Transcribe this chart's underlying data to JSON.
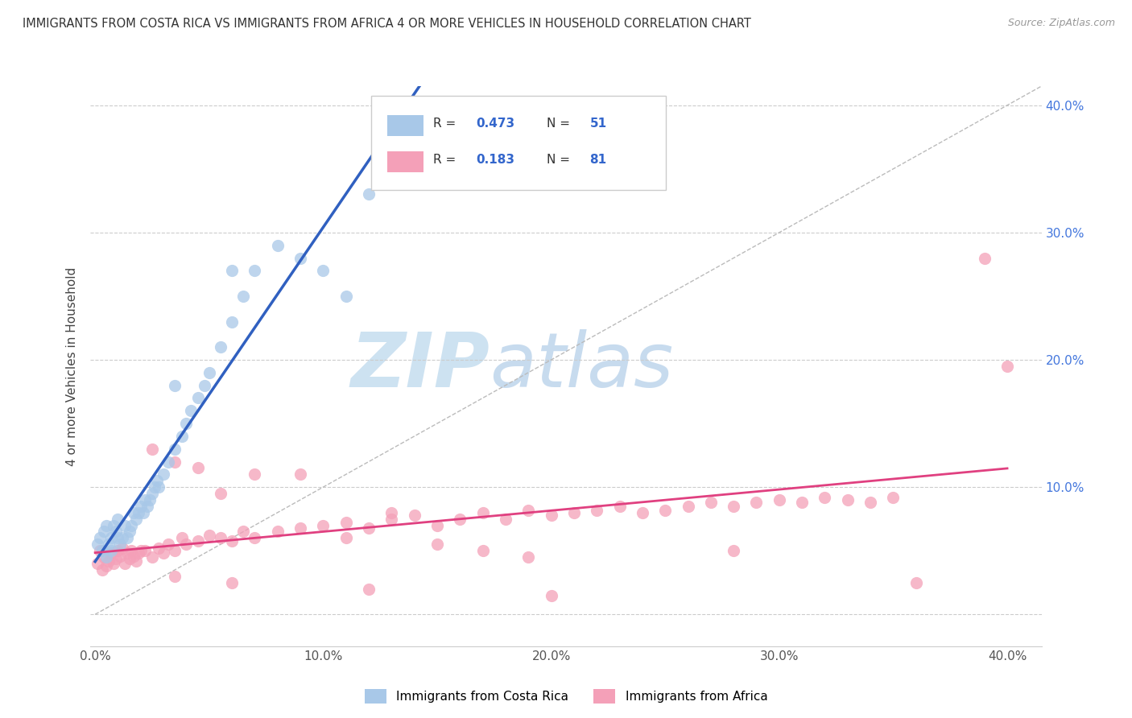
{
  "title": "IMMIGRANTS FROM COSTA RICA VS IMMIGRANTS FROM AFRICA 4 OR MORE VEHICLES IN HOUSEHOLD CORRELATION CHART",
  "source": "Source: ZipAtlas.com",
  "ylabel": "4 or more Vehicles in Household",
  "legend_label1": "Immigrants from Costa Rica",
  "legend_label2": "Immigrants from Africa",
  "r1": 0.473,
  "n1": 51,
  "r2": 0.183,
  "n2": 81,
  "color1": "#a8c8e8",
  "color2": "#f4a0b8",
  "line_color1": "#3060c0",
  "line_color2": "#e04080",
  "xlim": [
    -0.002,
    0.415
  ],
  "ylim": [
    -0.025,
    0.415
  ],
  "xticks": [
    0.0,
    0.1,
    0.2,
    0.3,
    0.4
  ],
  "yticks": [
    0.0,
    0.1,
    0.2,
    0.3,
    0.4
  ],
  "xticklabels": [
    "0.0%",
    "10.0%",
    "20.0%",
    "30.0%",
    "40.0%"
  ],
  "right_yticklabels": [
    "",
    "10.0%",
    "20.0%",
    "30.0%",
    "40.0%"
  ],
  "watermark_zip": "ZIP",
  "watermark_atlas": "atlas",
  "background_color": "#ffffff",
  "costa_rica_x": [
    0.001,
    0.002,
    0.003,
    0.004,
    0.005,
    0.005,
    0.006,
    0.007,
    0.007,
    0.008,
    0.009,
    0.01,
    0.01,
    0.011,
    0.012,
    0.013,
    0.014,
    0.015,
    0.016,
    0.017,
    0.018,
    0.019,
    0.02,
    0.021,
    0.022,
    0.023,
    0.024,
    0.025,
    0.026,
    0.027,
    0.028,
    0.03,
    0.032,
    0.035,
    0.038,
    0.04,
    0.042,
    0.045,
    0.048,
    0.05,
    0.055,
    0.06,
    0.065,
    0.07,
    0.08,
    0.09,
    0.1,
    0.11,
    0.12,
    0.06,
    0.035
  ],
  "costa_rica_y": [
    0.055,
    0.06,
    0.05,
    0.065,
    0.045,
    0.07,
    0.055,
    0.05,
    0.06,
    0.07,
    0.065,
    0.06,
    0.075,
    0.055,
    0.06,
    0.07,
    0.06,
    0.065,
    0.07,
    0.08,
    0.075,
    0.08,
    0.085,
    0.08,
    0.09,
    0.085,
    0.09,
    0.095,
    0.1,
    0.105,
    0.1,
    0.11,
    0.12,
    0.13,
    0.14,
    0.15,
    0.16,
    0.17,
    0.18,
    0.19,
    0.21,
    0.23,
    0.25,
    0.27,
    0.29,
    0.28,
    0.27,
    0.25,
    0.33,
    0.27,
    0.18
  ],
  "africa_x": [
    0.001,
    0.002,
    0.003,
    0.004,
    0.005,
    0.006,
    0.007,
    0.008,
    0.009,
    0.01,
    0.011,
    0.012,
    0.013,
    0.014,
    0.015,
    0.016,
    0.017,
    0.018,
    0.019,
    0.02,
    0.022,
    0.025,
    0.028,
    0.03,
    0.032,
    0.035,
    0.038,
    0.04,
    0.045,
    0.05,
    0.055,
    0.06,
    0.065,
    0.07,
    0.08,
    0.09,
    0.1,
    0.11,
    0.12,
    0.13,
    0.14,
    0.15,
    0.16,
    0.17,
    0.18,
    0.19,
    0.2,
    0.21,
    0.22,
    0.23,
    0.24,
    0.25,
    0.26,
    0.27,
    0.28,
    0.29,
    0.3,
    0.31,
    0.32,
    0.33,
    0.34,
    0.35,
    0.025,
    0.035,
    0.045,
    0.055,
    0.07,
    0.09,
    0.11,
    0.13,
    0.15,
    0.17,
    0.19,
    0.035,
    0.06,
    0.12,
    0.2,
    0.28,
    0.36,
    0.39,
    0.4
  ],
  "africa_y": [
    0.04,
    0.05,
    0.035,
    0.045,
    0.038,
    0.042,
    0.048,
    0.04,
    0.044,
    0.05,
    0.046,
    0.052,
    0.04,
    0.048,
    0.044,
    0.05,
    0.046,
    0.042,
    0.048,
    0.05,
    0.05,
    0.045,
    0.052,
    0.048,
    0.055,
    0.05,
    0.06,
    0.055,
    0.058,
    0.062,
    0.06,
    0.058,
    0.065,
    0.06,
    0.065,
    0.068,
    0.07,
    0.072,
    0.068,
    0.075,
    0.078,
    0.07,
    0.075,
    0.08,
    0.075,
    0.082,
    0.078,
    0.08,
    0.082,
    0.085,
    0.08,
    0.082,
    0.085,
    0.088,
    0.085,
    0.088,
    0.09,
    0.088,
    0.092,
    0.09,
    0.088,
    0.092,
    0.13,
    0.12,
    0.115,
    0.095,
    0.11,
    0.11,
    0.06,
    0.08,
    0.055,
    0.05,
    0.045,
    0.03,
    0.025,
    0.02,
    0.015,
    0.05,
    0.025,
    0.28,
    0.195
  ]
}
